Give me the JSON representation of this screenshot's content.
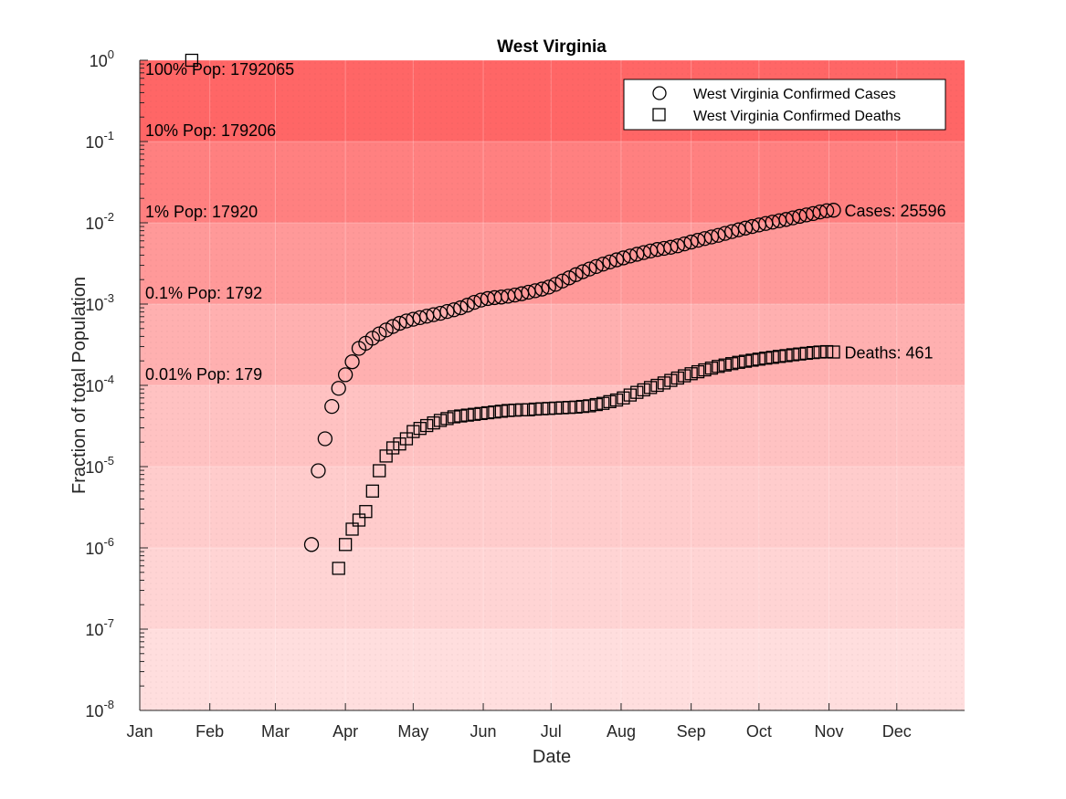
{
  "chart_data": {
    "type": "scatter",
    "title": "West Virginia",
    "xlabel": "Date",
    "ylabel": "Fraction of total Population",
    "yscale": "log",
    "ylim": [
      1e-08,
      1
    ],
    "xlim": [
      "2020-01-01",
      "2020-12-31"
    ],
    "x_ticks": [
      "Jan",
      "Feb",
      "Mar",
      "Apr",
      "May",
      "Jun",
      "Jul",
      "Aug",
      "Sep",
      "Oct",
      "Nov",
      "Dec"
    ],
    "y_ticks": [
      {
        "value": 1e-08,
        "base": "10",
        "exp": "-8"
      },
      {
        "value": 1e-07,
        "base": "10",
        "exp": "-7"
      },
      {
        "value": 1e-06,
        "base": "10",
        "exp": "-6"
      },
      {
        "value": 1e-05,
        "base": "10",
        "exp": "-5"
      },
      {
        "value": 0.0001,
        "base": "10",
        "exp": "-4"
      },
      {
        "value": 0.001,
        "base": "10",
        "exp": "-3"
      },
      {
        "value": 0.01,
        "base": "10",
        "exp": "-2"
      },
      {
        "value": 0.1,
        "base": "10",
        "exp": "-1"
      },
      {
        "value": 1,
        "base": "10",
        "exp": "0"
      }
    ],
    "bands": [
      {
        "value": 1,
        "label": "100% Pop: 1792065",
        "color": "#ff6666"
      },
      {
        "value": 0.1,
        "label": "10% Pop: 179206",
        "color": "#ff8080"
      },
      {
        "value": 0.01,
        "label": "1% Pop: 17920",
        "color": "#ff9999"
      },
      {
        "value": 0.001,
        "label": "0.1% Pop: 1792",
        "color": "#ffb0b0"
      },
      {
        "value": 0.0001,
        "label": "0.01% Pop: 179",
        "color": "#ffc2c2"
      },
      {
        "value": 1e-05,
        "label": "",
        "color": "#ffcccc"
      },
      {
        "value": 1e-06,
        "label": "",
        "color": "#ffd4d4"
      },
      {
        "value": 1e-07,
        "label": "",
        "color": "#ffdede"
      }
    ],
    "legend": {
      "position": "top-right"
    },
    "series": [
      {
        "name": "West Virginia Confirmed Cases",
        "marker": "circle",
        "end_label": "Cases: 25596",
        "points": [
          [
            "2020-03-17",
            1.1e-06
          ],
          [
            "2020-03-20",
            8.9e-06
          ],
          [
            "2020-03-23",
            2.2e-05
          ],
          [
            "2020-03-26",
            5.5e-05
          ],
          [
            "2020-03-29",
            9.2e-05
          ],
          [
            "2020-04-01",
            0.000135
          ],
          [
            "2020-04-04",
            0.000195
          ],
          [
            "2020-04-07",
            0.000285
          ],
          [
            "2020-04-10",
            0.00033
          ],
          [
            "2020-04-13",
            0.00038
          ],
          [
            "2020-04-16",
            0.00043
          ],
          [
            "2020-04-19",
            0.00048
          ],
          [
            "2020-04-22",
            0.00053
          ],
          [
            "2020-04-25",
            0.00058
          ],
          [
            "2020-04-28",
            0.00062
          ],
          [
            "2020-05-01",
            0.00065
          ],
          [
            "2020-05-04",
            0.00068
          ],
          [
            "2020-05-07",
            0.00071
          ],
          [
            "2020-05-10",
            0.00074
          ],
          [
            "2020-05-13",
            0.00077
          ],
          [
            "2020-05-16",
            0.00081
          ],
          [
            "2020-05-19",
            0.00085
          ],
          [
            "2020-05-22",
            0.0009
          ],
          [
            "2020-05-25",
            0.00097
          ],
          [
            "2020-05-28",
            0.00105
          ],
          [
            "2020-05-31",
            0.00112
          ],
          [
            "2020-06-03",
            0.00117
          ],
          [
            "2020-06-06",
            0.0012
          ],
          [
            "2020-06-09",
            0.00122
          ],
          [
            "2020-06-12",
            0.00125
          ],
          [
            "2020-06-15",
            0.00129
          ],
          [
            "2020-06-18",
            0.00134
          ],
          [
            "2020-06-21",
            0.0014
          ],
          [
            "2020-06-24",
            0.00146
          ],
          [
            "2020-06-27",
            0.00153
          ],
          [
            "2020-06-30",
            0.00162
          ],
          [
            "2020-07-03",
            0.00175
          ],
          [
            "2020-07-06",
            0.00192
          ],
          [
            "2020-07-09",
            0.0021
          ],
          [
            "2020-07-12",
            0.0023
          ],
          [
            "2020-07-15",
            0.0025
          ],
          [
            "2020-07-18",
            0.0027
          ],
          [
            "2020-07-21",
            0.0029
          ],
          [
            "2020-07-24",
            0.0031
          ],
          [
            "2020-07-27",
            0.0033
          ],
          [
            "2020-07-30",
            0.0035
          ],
          [
            "2020-08-02",
            0.0037
          ],
          [
            "2020-08-05",
            0.0039
          ],
          [
            "2020-08-08",
            0.0041
          ],
          [
            "2020-08-11",
            0.0043
          ],
          [
            "2020-08-14",
            0.0045
          ],
          [
            "2020-08-17",
            0.0047
          ],
          [
            "2020-08-20",
            0.00485
          ],
          [
            "2020-08-23",
            0.005
          ],
          [
            "2020-08-26",
            0.0052
          ],
          [
            "2020-08-29",
            0.0055
          ],
          [
            "2020-09-01",
            0.0058
          ],
          [
            "2020-09-04",
            0.0061
          ],
          [
            "2020-09-07",
            0.0064
          ],
          [
            "2020-09-10",
            0.0067
          ],
          [
            "2020-09-13",
            0.007
          ],
          [
            "2020-09-16",
            0.0074
          ],
          [
            "2020-09-19",
            0.0078
          ],
          [
            "2020-09-22",
            0.0082
          ],
          [
            "2020-09-25",
            0.0086
          ],
          [
            "2020-09-28",
            0.009
          ],
          [
            "2020-10-01",
            0.0094
          ],
          [
            "2020-10-04",
            0.0098
          ],
          [
            "2020-10-07",
            0.0102
          ],
          [
            "2020-10-10",
            0.0106
          ],
          [
            "2020-10-13",
            0.011
          ],
          [
            "2020-10-16",
            0.0115
          ],
          [
            "2020-10-19",
            0.012
          ],
          [
            "2020-10-22",
            0.0125
          ],
          [
            "2020-10-25",
            0.013
          ],
          [
            "2020-10-28",
            0.0136
          ],
          [
            "2020-10-31",
            0.0141
          ],
          [
            "2020-11-03",
            0.0143
          ]
        ]
      },
      {
        "name": "West Virginia Confirmed Deaths",
        "marker": "square",
        "end_label": "Deaths: 461",
        "points": [
          [
            "2020-03-29",
            5.6e-07
          ],
          [
            "2020-04-01",
            1.1e-06
          ],
          [
            "2020-04-04",
            1.7e-06
          ],
          [
            "2020-04-07",
            2.2e-06
          ],
          [
            "2020-04-10",
            2.8e-06
          ],
          [
            "2020-04-13",
            5e-06
          ],
          [
            "2020-04-16",
            8.9e-06
          ],
          [
            "2020-04-19",
            1.35e-05
          ],
          [
            "2020-04-22",
            1.7e-05
          ],
          [
            "2020-04-25",
            1.9e-05
          ],
          [
            "2020-04-28",
            2.2e-05
          ],
          [
            "2020-05-01",
            2.7e-05
          ],
          [
            "2020-05-04",
            2.95e-05
          ],
          [
            "2020-05-07",
            3.2e-05
          ],
          [
            "2020-05-10",
            3.45e-05
          ],
          [
            "2020-05-13",
            3.7e-05
          ],
          [
            "2020-05-16",
            3.9e-05
          ],
          [
            "2020-05-19",
            4.1e-05
          ],
          [
            "2020-05-22",
            4.2e-05
          ],
          [
            "2020-05-25",
            4.3e-05
          ],
          [
            "2020-05-28",
            4.4e-05
          ],
          [
            "2020-05-31",
            4.5e-05
          ],
          [
            "2020-06-03",
            4.6e-05
          ],
          [
            "2020-06-06",
            4.7e-05
          ],
          [
            "2020-06-09",
            4.8e-05
          ],
          [
            "2020-06-12",
            4.9e-05
          ],
          [
            "2020-06-15",
            4.95e-05
          ],
          [
            "2020-06-18",
            5e-05
          ],
          [
            "2020-06-21",
            5e-05
          ],
          [
            "2020-06-24",
            5.1e-05
          ],
          [
            "2020-06-27",
            5.15e-05
          ],
          [
            "2020-06-30",
            5.2e-05
          ],
          [
            "2020-07-03",
            5.25e-05
          ],
          [
            "2020-07-06",
            5.3e-05
          ],
          [
            "2020-07-09",
            5.35e-05
          ],
          [
            "2020-07-12",
            5.4e-05
          ],
          [
            "2020-07-15",
            5.5e-05
          ],
          [
            "2020-07-18",
            5.6e-05
          ],
          [
            "2020-07-21",
            5.8e-05
          ],
          [
            "2020-07-24",
            6e-05
          ],
          [
            "2020-07-27",
            6.3e-05
          ],
          [
            "2020-07-30",
            6.6e-05
          ],
          [
            "2020-08-02",
            7e-05
          ],
          [
            "2020-08-05",
            7.6e-05
          ],
          [
            "2020-08-08",
            8.2e-05
          ],
          [
            "2020-08-11",
            8.8e-05
          ],
          [
            "2020-08-14",
            9.4e-05
          ],
          [
            "2020-08-17",
            0.0001
          ],
          [
            "2020-08-20",
            0.000107
          ],
          [
            "2020-08-23",
            0.000115
          ],
          [
            "2020-08-26",
            0.000123
          ],
          [
            "2020-08-29",
            0.000131
          ],
          [
            "2020-09-01",
            0.000139
          ],
          [
            "2020-09-04",
            0.000147
          ],
          [
            "2020-09-07",
            0.000155
          ],
          [
            "2020-09-10",
            0.000163
          ],
          [
            "2020-09-13",
            0.000171
          ],
          [
            "2020-09-16",
            0.000178
          ],
          [
            "2020-09-19",
            0.000185
          ],
          [
            "2020-09-22",
            0.000192
          ],
          [
            "2020-09-25",
            0.000198
          ],
          [
            "2020-09-28",
            0.000204
          ],
          [
            "2020-10-01",
            0.00021
          ],
          [
            "2020-10-04",
            0.000216
          ],
          [
            "2020-10-07",
            0.000221
          ],
          [
            "2020-10-10",
            0.000227
          ],
          [
            "2020-10-13",
            0.000232
          ],
          [
            "2020-10-16",
            0.000238
          ],
          [
            "2020-10-19",
            0.000243
          ],
          [
            "2020-10-22",
            0.000248
          ],
          [
            "2020-10-25",
            0.000253
          ],
          [
            "2020-10-28",
            0.000257
          ],
          [
            "2020-10-31",
            0.00026
          ],
          [
            "2020-11-03",
            0.000257
          ]
        ]
      }
    ],
    "extra_marker": {
      "marker": "square",
      "x": "2020-01-24",
      "y": 1
    }
  }
}
